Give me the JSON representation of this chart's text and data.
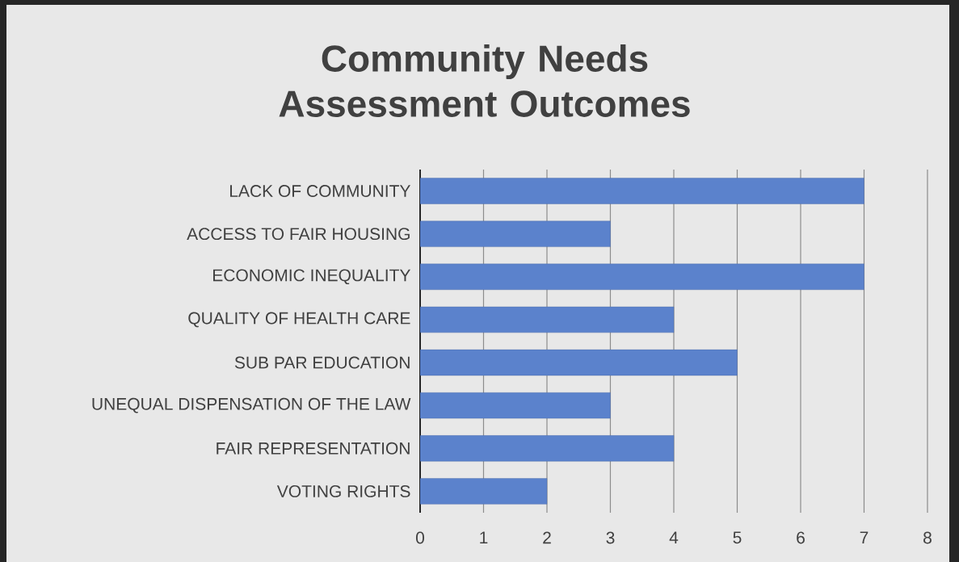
{
  "chart_data": {
    "type": "bar",
    "orientation": "horizontal",
    "title": "Community Needs Assessment Outcomes",
    "categories": [
      "LACK OF COMMUNITY",
      "ACCESS TO FAIR HOUSING",
      "ECONOMIC INEQUALITY",
      "QUALITY OF HEALTH CARE",
      "SUB PAR EDUCATION",
      "UNEQUAL DISPENSATION OF THE LAW",
      "FAIR REPRESENTATION",
      "VOTING RIGHTS"
    ],
    "values": [
      7,
      3,
      7,
      4,
      5,
      3,
      4,
      2
    ],
    "color": "#5b82cc",
    "xlim": [
      0,
      8
    ],
    "xticks": [
      0,
      1,
      2,
      3,
      4,
      5,
      6,
      7,
      8
    ],
    "grid": "x"
  }
}
